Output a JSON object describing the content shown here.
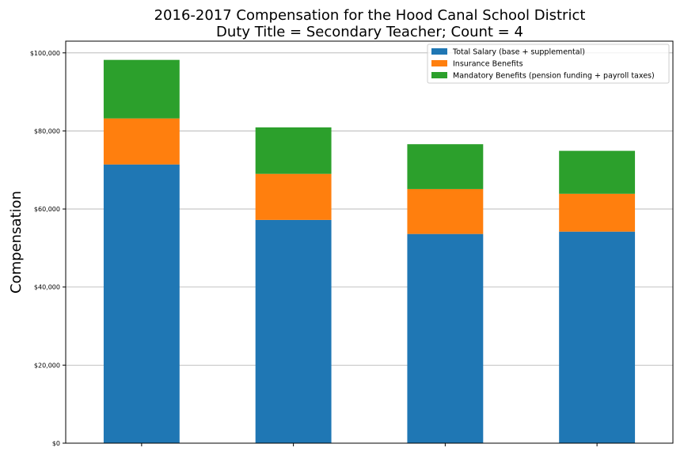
{
  "chart_data": {
    "type": "bar",
    "stacked": true,
    "title": "2016-2017 Compensation for the Hood Canal School District",
    "subtitle": "Duty Title = Secondary Teacher; Count = 4",
    "ylabel": "Compensation",
    "xlabel": "",
    "categories": [
      "",
      "",
      "",
      ""
    ],
    "ylim": [
      0,
      103000
    ],
    "yticks": [
      0,
      20000,
      40000,
      60000,
      80000,
      100000
    ],
    "ytick_labels": [
      "$0",
      "$20,000",
      "$40,000",
      "$60,000",
      "$80,000",
      "$100,000"
    ],
    "grid": "y",
    "legend_position": "top-right",
    "series": [
      {
        "name": "Total Salary (base + supplemental)",
        "color": "#1f77b4",
        "values": [
          71400,
          57200,
          53600,
          54200
        ]
      },
      {
        "name": "Insurance Benefits",
        "color": "#ff7f0e",
        "values": [
          11800,
          11800,
          11500,
          9700
        ]
      },
      {
        "name": "Mandatory Benefits (pension funding + payroll taxes)",
        "color": "#2ca02c",
        "values": [
          15000,
          11900,
          11500,
          11000
        ]
      }
    ]
  }
}
